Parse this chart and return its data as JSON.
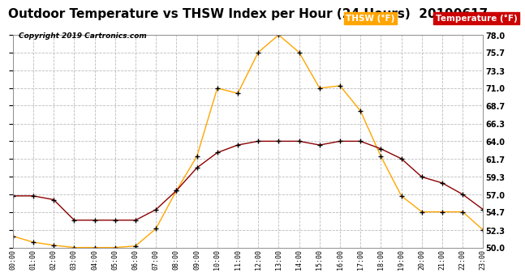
{
  "title": "Outdoor Temperature vs THSW Index per Hour (24 Hours)  20190617",
  "copyright": "Copyright 2019 Cartronics.com",
  "hours": [
    "00:00",
    "01:00",
    "02:00",
    "03:00",
    "04:00",
    "05:00",
    "06:00",
    "07:00",
    "08:00",
    "09:00",
    "10:00",
    "11:00",
    "12:00",
    "13:00",
    "14:00",
    "15:00",
    "16:00",
    "17:00",
    "18:00",
    "19:00",
    "20:00",
    "21:00",
    "22:00",
    "23:00"
  ],
  "temperature": [
    56.8,
    56.8,
    56.3,
    53.6,
    53.6,
    53.6,
    53.6,
    55.0,
    57.5,
    60.5,
    62.5,
    63.5,
    64.0,
    64.0,
    64.0,
    63.5,
    64.0,
    64.0,
    63.0,
    61.7,
    59.3,
    58.5,
    57.0,
    55.0
  ],
  "thsw": [
    51.5,
    50.7,
    50.3,
    50.0,
    50.0,
    50.0,
    50.2,
    52.5,
    57.5,
    62.0,
    71.0,
    70.3,
    75.7,
    78.0,
    75.7,
    71.0,
    71.3,
    68.0,
    62.0,
    56.8,
    54.7,
    54.7,
    54.7,
    52.3
  ],
  "temp_color": "#8b0000",
  "thsw_color": "#ffa500",
  "ylim_min": 50.0,
  "ylim_max": 78.0,
  "yticks": [
    50.0,
    52.3,
    54.7,
    57.0,
    59.3,
    61.7,
    64.0,
    66.3,
    68.7,
    71.0,
    73.3,
    75.7,
    78.0
  ],
  "bg_color": "#ffffff",
  "grid_color": "#bbbbbb",
  "title_fontsize": 11,
  "legend_thsw_label": "THSW (°F)",
  "legend_temp_label": "Temperature (°F)",
  "legend_thsw_bg": "#ffa500",
  "legend_temp_bg": "#cc0000"
}
